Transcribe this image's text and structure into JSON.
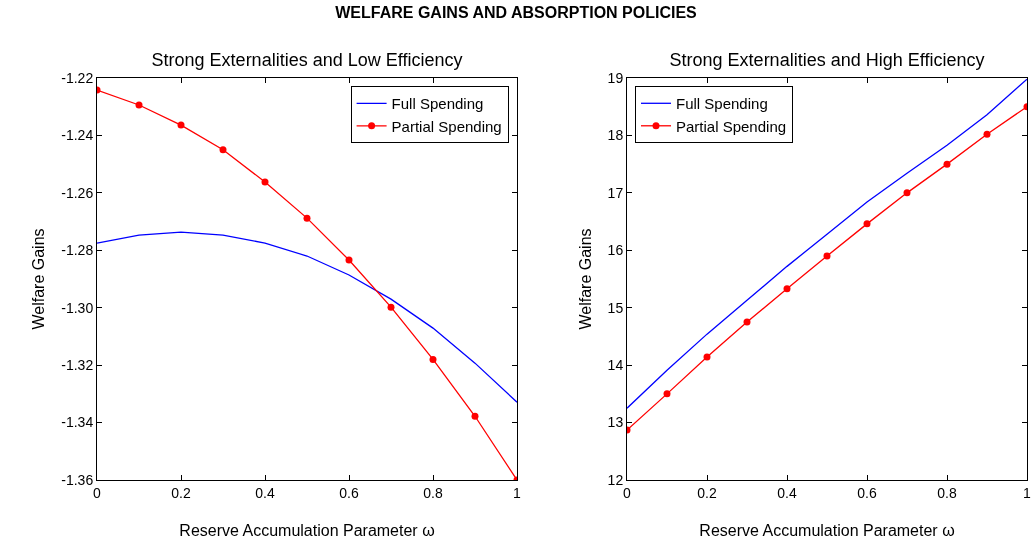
{
  "chart_data": [
    {
      "type": "line",
      "title": "Strong Externalities and Low Efficiency",
      "xlabel": "Reserve Accumulation Parameter ω",
      "ylabel": "Welfare Gains",
      "annotations": [
        "WELFARE GAINS AND ABSORPTION POLICIES"
      ],
      "x": [
        0,
        0.1,
        0.2,
        0.3,
        0.4,
        0.5,
        0.6,
        0.7,
        0.8,
        0.9,
        1
      ],
      "series": [
        {
          "name": "Full Spending",
          "color": "#0000ff",
          "marker": "none",
          "values": [
            -1.2775,
            -1.2747,
            -1.2737,
            -1.2747,
            -1.2775,
            -1.282,
            -1.2886,
            -1.297,
            -1.3071,
            -1.3193,
            -1.3329
          ]
        },
        {
          "name": "Partial Spending",
          "color": "#ff0000",
          "marker": "circle",
          "values": [
            -1.2242,
            -1.2294,
            -1.2364,
            -1.245,
            -1.2562,
            -1.2688,
            -1.2834,
            -1.2998,
            -1.318,
            -1.3378,
            -1.36
          ]
        }
      ],
      "xlim": [
        0,
        1
      ],
      "xticks": [
        0,
        0.2,
        0.4,
        0.6,
        0.8,
        1
      ],
      "ylim": [
        -1.36,
        -1.22
      ],
      "yticks": [
        -1.36,
        -1.34,
        -1.32,
        {
          "value": -1.3,
          "label": "-1.30"
        },
        -1.28,
        -1.26,
        -1.24,
        -1.22
      ],
      "grid": false,
      "legend": "top right",
      "line_style": "solid"
    },
    {
      "type": "line",
      "title": "Strong Externalities and High Efficiency",
      "xlabel": "Reserve Accumulation Parameter ω",
      "ylabel": "Welfare Gains",
      "x": [
        0,
        0.1,
        0.2,
        0.3,
        0.4,
        0.5,
        0.6,
        0.7,
        0.8,
        0.9,
        1
      ],
      "series": [
        {
          "name": "Full Spending",
          "color": "#0000ff",
          "marker": "none",
          "values": [
            13.25,
            13.91,
            14.54,
            15.13,
            15.72,
            16.28,
            16.84,
            17.34,
            17.83,
            18.36,
            18.98
          ]
        },
        {
          "name": "Partial Spending",
          "color": "#ff0000",
          "marker": "circle",
          "values": [
            12.87,
            13.5,
            14.14,
            14.75,
            15.33,
            15.9,
            16.46,
            17.0,
            17.5,
            18.02,
            18.5
          ]
        }
      ],
      "xlim": [
        0,
        1
      ],
      "xticks": [
        0,
        0.2,
        0.4,
        0.6,
        0.8,
        1
      ],
      "ylim": [
        12,
        19
      ],
      "yticks": [
        12,
        13,
        14,
        15,
        16,
        17,
        18,
        19
      ],
      "grid": false,
      "legend": "top left",
      "line_style": "solid"
    }
  ]
}
